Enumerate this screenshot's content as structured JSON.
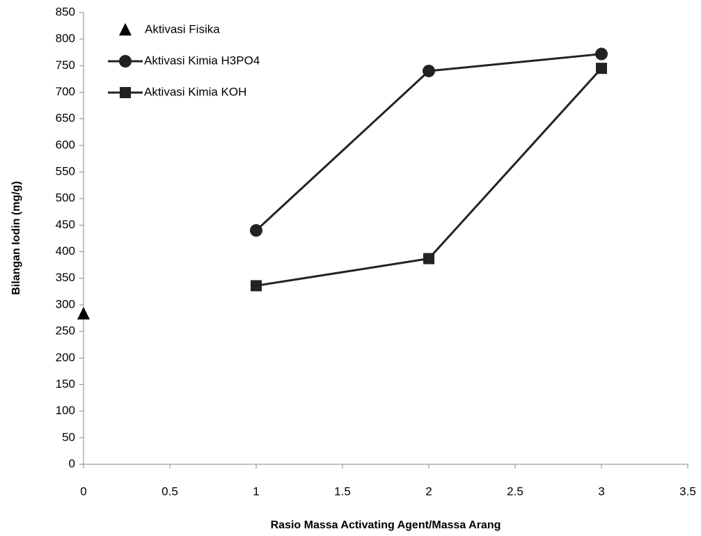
{
  "chart_data": {
    "type": "line",
    "x_label": "Rasio Massa Activating Agent/Massa Arang",
    "y_label": "Bilangan Iodin  (mg/g)",
    "xlim": [
      0,
      3.5
    ],
    "xticks": [
      0,
      0.5,
      1,
      1.5,
      2,
      2.5,
      3,
      3.5
    ],
    "ylim": [
      0,
      850
    ],
    "yticks": [
      0,
      50,
      100,
      150,
      200,
      250,
      300,
      350,
      400,
      450,
      500,
      550,
      600,
      650,
      700,
      750,
      800,
      850
    ],
    "series": [
      {
        "name": "Aktivasi Fisika",
        "color": "#000000",
        "marker": "triangle",
        "line": false,
        "x": [
          0
        ],
        "values": [
          283
        ]
      },
      {
        "name": "Aktivasi Kimia H3PO4",
        "color": "#222222",
        "marker": "circle",
        "line": true,
        "x": [
          1,
          2,
          3
        ],
        "values": [
          440,
          740,
          772
        ]
      },
      {
        "name": "Aktivasi Kimia KOH",
        "color": "#222222",
        "marker": "square",
        "line": true,
        "x": [
          1,
          2,
          3
        ],
        "values": [
          336,
          387,
          745
        ]
      }
    ]
  }
}
